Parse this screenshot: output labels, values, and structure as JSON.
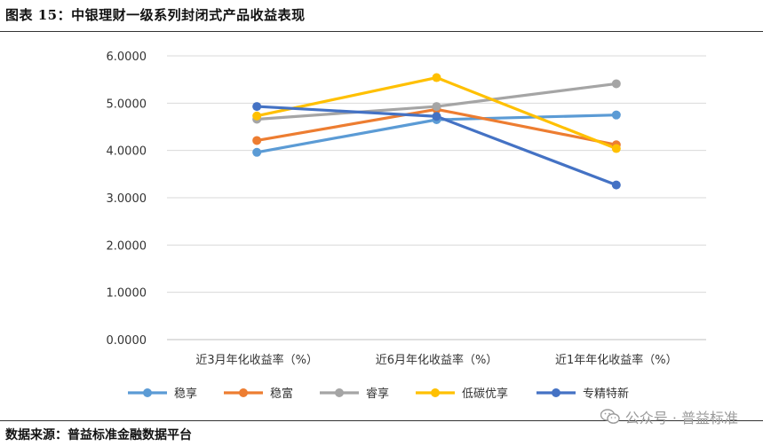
{
  "header": {
    "title": "图表 15：中银理财一级系列封闭式产品收益表现"
  },
  "footer": {
    "source": "数据来源：普益标准金融数据平台"
  },
  "watermark": {
    "text": "公众号 · 普益标准",
    "icon": "wechat-icon"
  },
  "chart_data": {
    "type": "line",
    "title": "",
    "xlabel": "",
    "ylabel": "",
    "categories": [
      "近3月年化收益率（%）",
      "近6月年化收益率（%）",
      "近1年年化收益率（%）"
    ],
    "ylim": [
      0,
      6
    ],
    "yticks": [
      "0.0000",
      "1.0000",
      "2.0000",
      "3.0000",
      "4.0000",
      "5.0000",
      "6.0000"
    ],
    "grid": true,
    "legend_position": "bottom",
    "series": [
      {
        "name": "稳享",
        "color": "#5B9BD5",
        "values": [
          3.96,
          4.65,
          4.75
        ]
      },
      {
        "name": "稳富",
        "color": "#ED7D31",
        "values": [
          4.21,
          4.87,
          4.12
        ]
      },
      {
        "name": "睿享",
        "color": "#A5A5A5",
        "values": [
          4.66,
          4.93,
          5.41
        ]
      },
      {
        "name": "低碳优享",
        "color": "#FFC000",
        "values": [
          4.73,
          5.54,
          4.04
        ]
      },
      {
        "name": "专精特新",
        "color": "#4472C4",
        "values": [
          4.93,
          4.72,
          3.27
        ]
      }
    ]
  }
}
